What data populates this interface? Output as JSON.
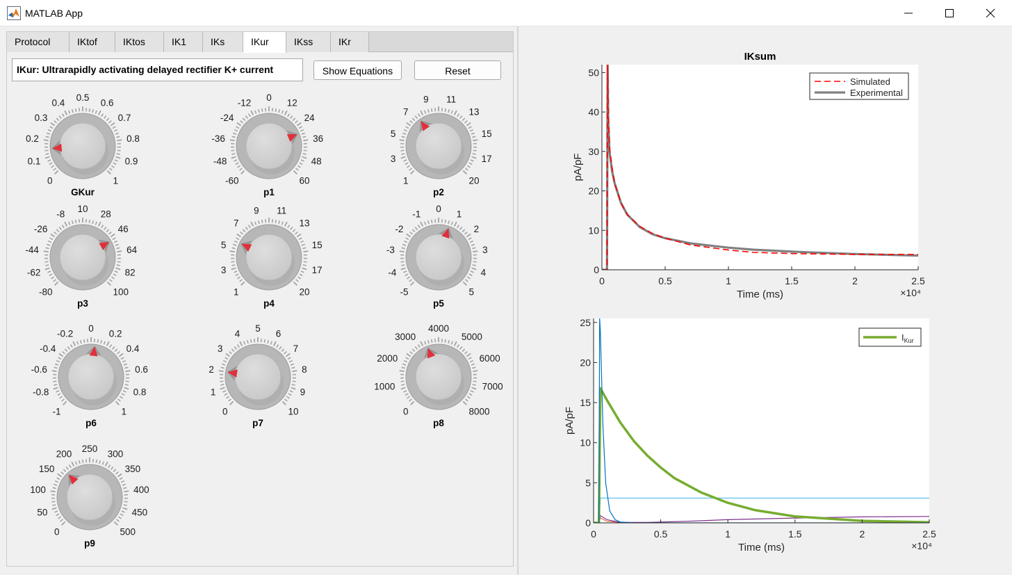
{
  "window": {
    "title": "MATLAB App"
  },
  "tabs": [
    {
      "label": "Protocol"
    },
    {
      "label": "IKtof"
    },
    {
      "label": "IKtos"
    },
    {
      "label": "IK1"
    },
    {
      "label": "IKs"
    },
    {
      "label": "IKur"
    },
    {
      "label": "IKss"
    },
    {
      "label": "IKr"
    }
  ],
  "active_tab": "IKur",
  "description": "IKur: Ultrarapidly activating delayed rectifier K+ current",
  "buttons": {
    "show_equations": "Show Equations",
    "reset": "Reset"
  },
  "knobs": [
    {
      "name": "GKur",
      "min": 0,
      "max": 1,
      "value": 0.15,
      "labels": [
        "0",
        "0.1",
        "0.2",
        "0.3",
        "0.4",
        "0.5",
        "0.6",
        "0.7",
        "0.8",
        "0.9",
        "1"
      ]
    },
    {
      "name": "p1",
      "min": -60,
      "max": 60,
      "value": 30,
      "labels": [
        "-60",
        "-48",
        "-36",
        "-24",
        "-12",
        "0",
        "12",
        "24",
        "36",
        "48",
        "60"
      ]
    },
    {
      "name": "p2",
      "min": 1,
      "max": 20,
      "value": 8,
      "labels": [
        "1",
        "3",
        "5",
        "7",
        "9",
        "11",
        "13",
        "15",
        "17",
        "20"
      ]
    },
    {
      "name": "p3",
      "min": -80,
      "max": 100,
      "value": 50,
      "labels": [
        "-80",
        "-62",
        "-44",
        "-26",
        "-8",
        "10",
        "28",
        "46",
        "64",
        "82",
        "100"
      ]
    },
    {
      "name": "p4",
      "min": 1,
      "max": 20,
      "value": 6,
      "labels": [
        "1",
        "3",
        "5",
        "7",
        "9",
        "11",
        "13",
        "15",
        "17",
        "20"
      ]
    },
    {
      "name": "p5",
      "min": -5,
      "max": 5,
      "value": 0.7,
      "labels": [
        "-5",
        "-4",
        "-3",
        "-2",
        "-1",
        "0",
        "1",
        "2",
        "3",
        "4",
        "5"
      ]
    },
    {
      "name": "p6",
      "min": -1,
      "max": 1,
      "value": 0.05,
      "labels": [
        "-1",
        "-0.8",
        "-0.6",
        "-0.4",
        "-0.2",
        "0",
        "0.2",
        "0.4",
        "0.6",
        "0.8",
        "1"
      ]
    },
    {
      "name": "p7",
      "min": 0,
      "max": 10,
      "value": 2,
      "labels": [
        "0",
        "1",
        "2",
        "3",
        "4",
        "5",
        "6",
        "7",
        "8",
        "9",
        "10"
      ]
    },
    {
      "name": "p8",
      "min": 0,
      "max": 8000,
      "value": 3400,
      "labels": [
        "0",
        "1000",
        "2000",
        "3000",
        "4000",
        "5000",
        "6000",
        "7000",
        "8000"
      ]
    },
    {
      "name": "p9",
      "min": 0,
      "max": 500,
      "value": 170,
      "labels": [
        "0",
        "50",
        "100",
        "150",
        "200",
        "250",
        "300",
        "350",
        "400",
        "450",
        "500"
      ]
    }
  ],
  "colors": {
    "accent": "#e0303a",
    "simulated": "#ff0000",
    "experimental": "#808080",
    "ikur": "#77ac30"
  },
  "chart_data": [
    {
      "type": "line",
      "title": "IKsum",
      "xlabel": "Time (ms)",
      "ylabel": "pA/pF",
      "x_exponent": "×10⁴",
      "xlim": [
        0,
        2.5
      ],
      "ylim": [
        0,
        52
      ],
      "xticks": [
        "0",
        "0.5",
        "1",
        "1.5",
        "2",
        "2.5"
      ],
      "yticks": [
        "0",
        "10",
        "20",
        "30",
        "40",
        "50"
      ],
      "legend_position": "top-right",
      "series": [
        {
          "name": "Simulated",
          "color": "#ff0000",
          "style": "dashed",
          "x": [
            0,
            0.04,
            0.045,
            0.05,
            0.06,
            0.08,
            0.1,
            0.15,
            0.2,
            0.3,
            0.4,
            0.5,
            0.7,
            1.0,
            1.2,
            1.5,
            2.0,
            2.5
          ],
          "y": [
            0,
            0,
            52,
            40,
            31,
            26,
            22,
            17,
            14,
            11,
            9.2,
            8,
            6.3,
            5,
            4.4,
            4.1,
            3.9,
            3.9
          ]
        },
        {
          "name": "Experimental",
          "color": "#808080",
          "style": "solid",
          "x": [
            0,
            0.04,
            0.045,
            0.05,
            0.06,
            0.08,
            0.1,
            0.15,
            0.2,
            0.3,
            0.4,
            0.5,
            0.7,
            1.0,
            1.2,
            1.5,
            2.0,
            2.5
          ],
          "y": [
            0,
            0,
            52,
            38,
            30,
            25,
            22,
            17,
            14,
            10.8,
            9,
            8,
            6.7,
            5.6,
            5.1,
            4.6,
            4.0,
            3.6
          ]
        }
      ]
    },
    {
      "type": "line",
      "title": "",
      "xlabel": "Time (ms)",
      "ylabel": "pA/pF",
      "x_exponent": "×10⁴",
      "xlim": [
        0,
        2.5
      ],
      "ylim": [
        0,
        25.5
      ],
      "xticks": [
        "0",
        "0.5",
        "1",
        "1.5",
        "2",
        "2.5"
      ],
      "yticks": [
        "0",
        "5",
        "10",
        "15",
        "20",
        "25"
      ],
      "legend_position": "top-right",
      "series": [
        {
          "name": "I",
          "name_subscript": "Kur",
          "color": "#77ac30",
          "width": 3.5,
          "x": [
            0,
            0.04,
            0.05,
            0.1,
            0.2,
            0.3,
            0.4,
            0.5,
            0.6,
            0.8,
            1.0,
            1.2,
            1.5,
            2.0,
            2.5
          ],
          "y": [
            0,
            0,
            16.8,
            15.3,
            12.5,
            10.2,
            8.4,
            6.9,
            5.6,
            3.8,
            2.5,
            1.6,
            0.8,
            0.25,
            0.08
          ]
        },
        {
          "color": "#0072bd",
          "width": 1.2,
          "x": [
            0,
            0.04,
            0.045,
            0.05,
            0.07,
            0.09,
            0.12,
            0.16,
            0.2,
            0.3,
            2.5
          ],
          "y": [
            0,
            0,
            25.5,
            24,
            12,
            5,
            1.5,
            0.4,
            0.1,
            0,
            0
          ]
        },
        {
          "color": "#4dbeee",
          "width": 1.2,
          "x": [
            0,
            0.04,
            0.05,
            2.5
          ],
          "y": [
            0,
            0,
            3.1,
            3.1
          ]
        },
        {
          "color": "#7e2f8e",
          "width": 1.2,
          "x": [
            0,
            0.04,
            0.05,
            0.1,
            0.2,
            0.4,
            0.7,
            1.0,
            1.5,
            2.0,
            2.5
          ],
          "y": [
            0,
            0,
            0.9,
            0.4,
            0.05,
            0.05,
            0.2,
            0.4,
            0.6,
            0.75,
            0.8
          ]
        },
        {
          "color": "#d95319",
          "width": 1.0,
          "x": [
            0,
            0.04,
            0.05,
            0.1,
            0.2,
            0.3,
            2.5
          ],
          "y": [
            0,
            0,
            0.6,
            0.2,
            0.05,
            0,
            0
          ]
        }
      ]
    }
  ]
}
